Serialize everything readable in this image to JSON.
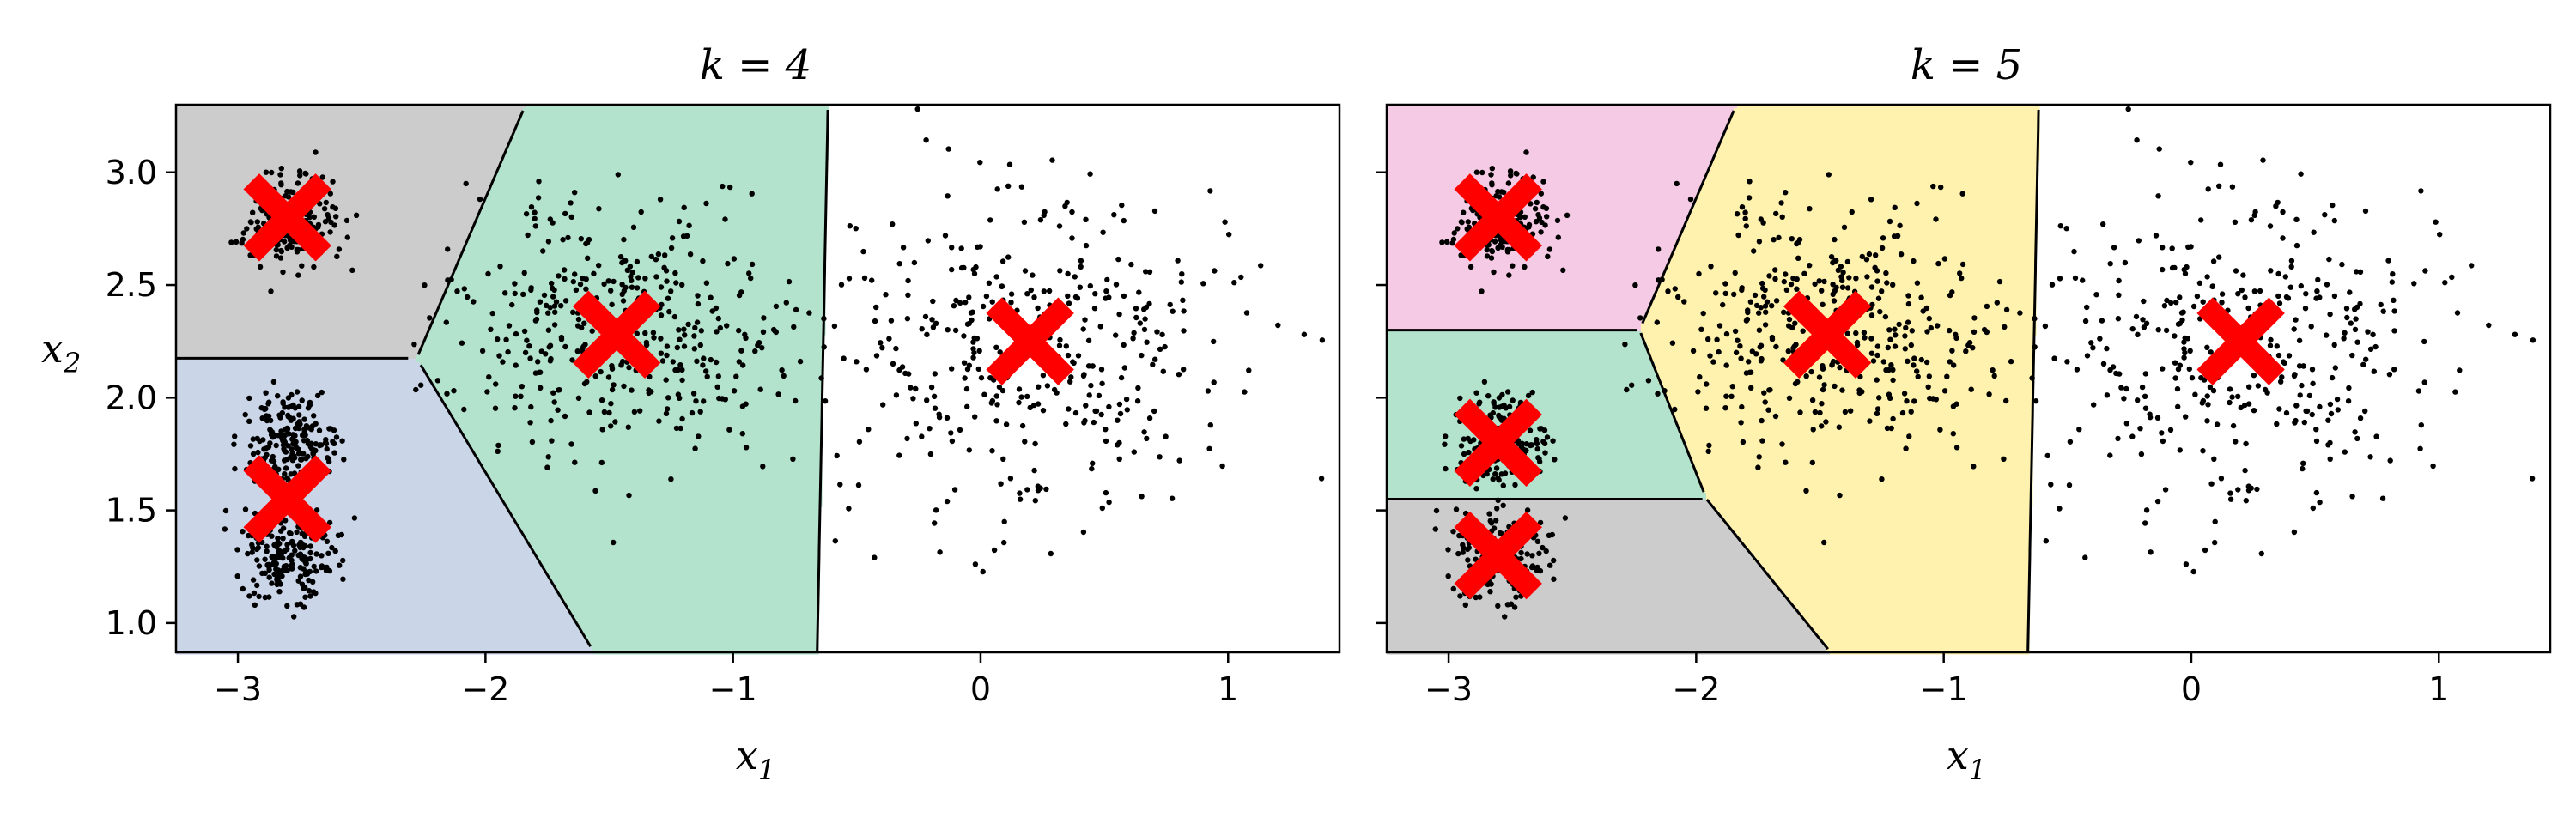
{
  "chart_data": [
    {
      "type": "scatter",
      "title": "k = 4",
      "title_var": "k",
      "title_value": "4",
      "xlabel": "x",
      "xlabel_sub": "1",
      "ylabel": "x",
      "ylabel_sub": "2",
      "xlim": [
        -3.25,
        1.45
      ],
      "ylim": [
        0.87,
        3.3
      ],
      "xticks": [
        -3,
        -2,
        -1,
        0,
        1
      ],
      "xtick_labels": [
        "−3",
        "−2",
        "−1",
        "0",
        "1"
      ],
      "yticks": [
        1.0,
        1.5,
        2.0,
        2.5,
        3.0
      ],
      "ytick_labels": [
        "1.0",
        "1.5",
        "2.0",
        "2.5",
        "3.0"
      ],
      "show_yticklabels": true,
      "centroids": [
        [
          -2.8,
          2.8
        ],
        [
          -2.8,
          1.55
        ],
        [
          -1.47,
          2.28
        ],
        [
          0.2,
          2.25
        ]
      ],
      "region_colors": [
        "#cccccc",
        "#cbd5e8",
        "#b3e2cd",
        "#e6f5c9"
      ],
      "clusters": [
        {
          "center": [
            -2.8,
            2.8
          ],
          "sx": 0.1,
          "sy": 0.1,
          "n": 200
        },
        {
          "center": [
            -2.8,
            1.8
          ],
          "sx": 0.1,
          "sy": 0.1,
          "n": 200
        },
        {
          "center": [
            -2.8,
            1.3
          ],
          "sx": 0.1,
          "sy": 0.1,
          "n": 200
        },
        {
          "center": [
            -1.45,
            2.3
          ],
          "sx": 0.35,
          "sy": 0.3,
          "n": 400
        },
        {
          "center": [
            0.2,
            2.2
          ],
          "sx": 0.4,
          "sy": 0.38,
          "n": 400
        }
      ]
    },
    {
      "type": "scatter",
      "title": "k = 5",
      "title_var": "k",
      "title_value": "5",
      "xlabel": "x",
      "xlabel_sub": "1",
      "ylabel": "",
      "ylabel_sub": "",
      "xlim": [
        -3.25,
        1.45
      ],
      "ylim": [
        0.87,
        3.3
      ],
      "xticks": [
        -3,
        -2,
        -1,
        0,
        1
      ],
      "xtick_labels": [
        "−3",
        "−2",
        "−1",
        "0",
        "1"
      ],
      "yticks": [
        1.0,
        1.5,
        2.0,
        2.5,
        3.0
      ],
      "ytick_labels": [
        "",
        "",
        "",
        "",
        ""
      ],
      "show_yticklabels": false,
      "centroids": [
        [
          -2.8,
          2.8
        ],
        [
          -2.8,
          1.8
        ],
        [
          -2.8,
          1.3
        ],
        [
          -1.47,
          2.28
        ],
        [
          0.2,
          2.25
        ]
      ],
      "region_colors": [
        "#f4cae4",
        "#b3e2cd",
        "#cccccc",
        "#fff2ae",
        "#fdcdac"
      ],
      "clusters": [
        {
          "center": [
            -2.8,
            2.8
          ],
          "sx": 0.1,
          "sy": 0.1,
          "n": 200
        },
        {
          "center": [
            -2.8,
            1.8
          ],
          "sx": 0.1,
          "sy": 0.1,
          "n": 200
        },
        {
          "center": [
            -2.8,
            1.3
          ],
          "sx": 0.1,
          "sy": 0.1,
          "n": 200
        },
        {
          "center": [
            -1.45,
            2.3
          ],
          "sx": 0.35,
          "sy": 0.3,
          "n": 400
        },
        {
          "center": [
            0.2,
            2.2
          ],
          "sx": 0.4,
          "sy": 0.38,
          "n": 400
        }
      ]
    }
  ],
  "colors": {
    "centroid": "#ff0000",
    "point": "#000000",
    "boundary": "#000000"
  }
}
